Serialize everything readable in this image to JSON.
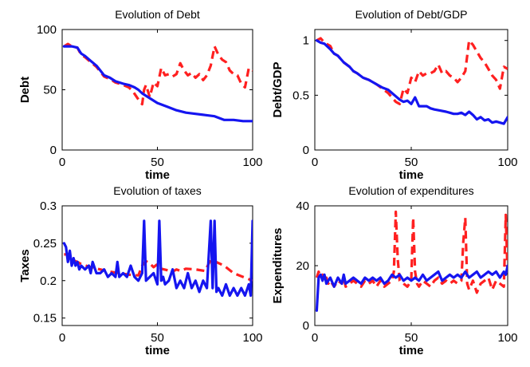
{
  "chart_data": [
    {
      "type": "line",
      "title": "Evolution of Debt",
      "xlabel": "time",
      "ylabel": "Debt",
      "xlim": [
        0,
        100
      ],
      "ylim": [
        0,
        100
      ],
      "xticks": [
        0,
        50,
        100
      ],
      "yticks": [
        0,
        50,
        100
      ],
      "series": [
        {
          "style": "solid",
          "color": "#1515f0",
          "x": [
            1,
            5,
            8,
            10,
            12,
            15,
            18,
            20,
            22,
            25,
            28,
            30,
            32,
            35,
            38,
            40,
            42,
            45,
            48,
            50,
            55,
            60,
            65,
            70,
            75,
            80,
            85,
            90,
            95,
            100
          ],
          "y": [
            86,
            86,
            85,
            80,
            78,
            74,
            70,
            66,
            62,
            60,
            57,
            56,
            55,
            54,
            52,
            50,
            47,
            44,
            41,
            39,
            36,
            33,
            31,
            30,
            29,
            28,
            25,
            25,
            24,
            24
          ]
        },
        {
          "style": "dashed",
          "color": "#ff2020",
          "x": [
            1,
            3,
            5,
            8,
            10,
            12,
            15,
            18,
            20,
            22,
            25,
            28,
            30,
            32,
            35,
            37,
            40,
            42,
            43,
            44,
            46,
            48,
            50,
            52,
            54,
            56,
            58,
            60,
            62,
            64,
            66,
            68,
            70,
            72,
            74,
            76,
            78,
            80,
            82,
            84,
            86,
            88,
            90,
            92,
            94,
            96,
            98,
            100
          ],
          "y": [
            86,
            88,
            86,
            85,
            79,
            77,
            73,
            69,
            65,
            61,
            59,
            56,
            55,
            54,
            52,
            49,
            42,
            38,
            50,
            54,
            44,
            56,
            53,
            68,
            62,
            63,
            61,
            63,
            72,
            66,
            62,
            64,
            60,
            63,
            58,
            62,
            70,
            86,
            79,
            75,
            73,
            66,
            63,
            62,
            55,
            52,
            68,
            66
          ]
        }
      ]
    },
    {
      "type": "line",
      "title": "Evolution of Debt/GDP",
      "xlabel": "time",
      "ylabel": "Debt/GDP",
      "xlim": [
        0,
        100
      ],
      "ylim": [
        0,
        1.1
      ],
      "xticks": [
        0,
        50,
        100
      ],
      "yticks": [
        0,
        0.5,
        1
      ],
      "ytick_labels": [
        "0",
        "0.5",
        "1"
      ],
      "series": [
        {
          "style": "solid",
          "color": "#1515f0",
          "x": [
            1,
            3,
            5,
            8,
            10,
            12,
            15,
            18,
            20,
            22,
            25,
            28,
            30,
            32,
            35,
            38,
            40,
            42,
            44,
            46,
            48,
            50,
            52,
            54,
            56,
            58,
            60,
            62,
            65,
            68,
            70,
            72,
            74,
            76,
            78,
            80,
            82,
            84,
            86,
            88,
            90,
            92,
            94,
            96,
            98,
            100
          ],
          "y": [
            1.0,
            0.98,
            0.97,
            0.92,
            0.88,
            0.86,
            0.8,
            0.76,
            0.72,
            0.7,
            0.66,
            0.64,
            0.62,
            0.6,
            0.57,
            0.55,
            0.52,
            0.49,
            0.46,
            0.44,
            0.45,
            0.42,
            0.48,
            0.4,
            0.4,
            0.4,
            0.38,
            0.37,
            0.36,
            0.35,
            0.34,
            0.33,
            0.33,
            0.34,
            0.32,
            0.35,
            0.32,
            0.28,
            0.3,
            0.27,
            0.28,
            0.25,
            0.26,
            0.25,
            0.24,
            0.3
          ]
        },
        {
          "style": "dashed",
          "color": "#ff2020",
          "x": [
            1,
            3,
            5,
            8,
            10,
            12,
            15,
            18,
            20,
            22,
            25,
            28,
            30,
            32,
            35,
            38,
            40,
            42,
            44,
            46,
            48,
            50,
            52,
            54,
            56,
            58,
            60,
            62,
            64,
            66,
            68,
            70,
            72,
            74,
            76,
            78,
            80,
            82,
            84,
            86,
            88,
            90,
            92,
            94,
            96,
            98,
            100
          ],
          "y": [
            1.0,
            1.02,
            0.98,
            0.95,
            0.88,
            0.86,
            0.8,
            0.76,
            0.72,
            0.7,
            0.66,
            0.64,
            0.62,
            0.6,
            0.56,
            0.52,
            0.48,
            0.44,
            0.42,
            0.56,
            0.52,
            0.66,
            0.62,
            0.72,
            0.68,
            0.7,
            0.7,
            0.72,
            0.78,
            0.7,
            0.72,
            0.68,
            0.66,
            0.62,
            0.66,
            0.72,
            1.0,
            0.96,
            0.9,
            0.84,
            0.8,
            0.74,
            0.68,
            0.64,
            0.56,
            0.76,
            0.74
          ]
        }
      ]
    },
    {
      "type": "line",
      "title": "Evolution of taxes",
      "xlabel": "time",
      "ylabel": "Taxes",
      "xlim": [
        0,
        100
      ],
      "ylim": [
        0.14,
        0.3
      ],
      "xticks": [
        0,
        50,
        100
      ],
      "yticks": [
        0.15,
        0.2,
        0.25,
        0.3
      ],
      "ytick_labels": [
        "0.15",
        "0.2",
        "0.25",
        "0.3"
      ],
      "series": [
        {
          "style": "solid",
          "color": "#1515f0",
          "x": [
            1,
            2,
            3,
            4,
            5,
            6,
            7,
            8,
            9,
            10,
            12,
            14,
            15,
            16,
            18,
            20,
            22,
            24,
            26,
            28,
            29,
            30,
            32,
            34,
            36,
            38,
            40,
            42,
            43,
            44,
            46,
            48,
            50,
            51,
            52,
            53,
            54,
            56,
            58,
            60,
            62,
            64,
            66,
            68,
            70,
            72,
            74,
            76,
            78,
            79,
            80,
            81,
            82,
            84,
            86,
            88,
            90,
            92,
            94,
            96,
            98,
            99,
            100
          ],
          "y": [
            0.25,
            0.245,
            0.225,
            0.24,
            0.22,
            0.23,
            0.22,
            0.225,
            0.215,
            0.22,
            0.215,
            0.22,
            0.21,
            0.225,
            0.21,
            0.21,
            0.215,
            0.205,
            0.21,
            0.205,
            0.225,
            0.205,
            0.21,
            0.205,
            0.22,
            0.205,
            0.2,
            0.21,
            0.28,
            0.2,
            0.205,
            0.21,
            0.195,
            0.28,
            0.2,
            0.205,
            0.195,
            0.2,
            0.215,
            0.19,
            0.2,
            0.19,
            0.21,
            0.19,
            0.2,
            0.185,
            0.2,
            0.19,
            0.28,
            0.19,
            0.28,
            0.185,
            0.19,
            0.18,
            0.195,
            0.18,
            0.19,
            0.18,
            0.19,
            0.18,
            0.195,
            0.18,
            0.28
          ]
        },
        {
          "style": "dashed",
          "color": "#ff2020",
          "x": [
            1,
            3,
            5,
            8,
            10,
            15,
            20,
            25,
            30,
            35,
            40,
            42,
            44,
            46,
            48,
            50,
            52,
            55,
            58,
            60,
            62,
            65,
            70,
            75,
            78,
            80,
            85,
            90,
            95,
            100
          ],
          "y": [
            0.235,
            0.235,
            0.228,
            0.225,
            0.222,
            0.218,
            0.215,
            0.212,
            0.21,
            0.208,
            0.207,
            0.22,
            0.226,
            0.223,
            0.218,
            0.222,
            0.216,
            0.214,
            0.212,
            0.215,
            0.213,
            0.216,
            0.215,
            0.213,
            0.228,
            0.226,
            0.22,
            0.21,
            0.205,
            0.2
          ]
        }
      ]
    },
    {
      "type": "line",
      "title": "Evolution of expenditures",
      "xlabel": "time",
      "ylabel": "Expenditures",
      "xlim": [
        0,
        100
      ],
      "ylim": [
        0,
        40
      ],
      "xticks": [
        0,
        50,
        100
      ],
      "yticks": [
        0,
        20,
        40
      ],
      "series": [
        {
          "style": "solid",
          "color": "#1515f0",
          "x": [
            1,
            2,
            3,
            4,
            5,
            6,
            7,
            8,
            10,
            12,
            14,
            15,
            16,
            18,
            20,
            22,
            24,
            26,
            28,
            30,
            32,
            34,
            36,
            38,
            40,
            42,
            44,
            46,
            48,
            50,
            52,
            54,
            56,
            58,
            60,
            62,
            64,
            66,
            68,
            70,
            72,
            74,
            76,
            78,
            80,
            82,
            84,
            86,
            88,
            90,
            92,
            94,
            96,
            98,
            99,
            100
          ],
          "y": [
            5,
            16,
            17,
            15,
            17,
            14,
            15,
            16,
            13,
            16,
            14,
            17,
            14,
            15,
            16,
            15,
            14,
            16,
            15,
            16,
            15,
            16,
            14,
            15,
            17,
            16,
            17,
            15,
            16,
            15,
            16,
            15,
            17,
            15,
            16,
            17,
            18,
            15,
            16,
            17,
            16,
            17,
            16,
            18,
            16,
            17,
            18,
            16,
            17,
            18,
            17,
            18,
            16,
            18,
            17,
            20
          ]
        },
        {
          "style": "dashed",
          "color": "#ff2020",
          "x": [
            1,
            2,
            3,
            4,
            5,
            6,
            7,
            8,
            10,
            12,
            14,
            15,
            16,
            18,
            20,
            22,
            24,
            26,
            28,
            30,
            32,
            34,
            36,
            38,
            40,
            41,
            42,
            43,
            44,
            46,
            48,
            50,
            51,
            52,
            53,
            54,
            56,
            58,
            60,
            62,
            64,
            66,
            68,
            70,
            72,
            74,
            76,
            77,
            78,
            79,
            80,
            82,
            84,
            86,
            88,
            90,
            92,
            94,
            96,
            98,
            99,
            100
          ],
          "y": [
            16,
            18,
            16,
            17,
            15,
            16,
            14,
            15,
            13,
            15,
            14,
            16,
            13,
            14,
            15,
            14,
            13,
            15,
            14,
            15,
            13,
            15,
            13,
            14,
            15,
            18,
            38,
            22,
            15,
            14,
            13,
            15,
            36,
            18,
            14,
            13,
            15,
            14,
            13,
            15,
            16,
            14,
            15,
            14,
            15,
            14,
            15,
            28,
            36,
            14,
            12,
            15,
            11,
            14,
            15,
            16,
            12,
            15,
            14,
            13,
            37,
            16
          ]
        }
      ]
    }
  ]
}
